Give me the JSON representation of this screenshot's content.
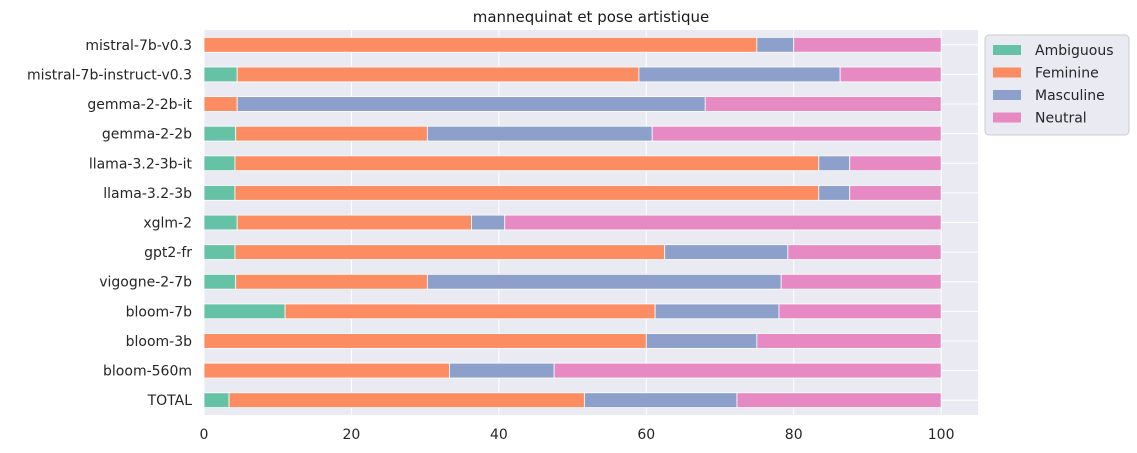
{
  "chart_data": {
    "type": "bar",
    "orientation": "horizontal",
    "stacked": true,
    "title": "mannequinat et pose artistique",
    "xlabel": "",
    "ylabel": "",
    "xlim": [
      0,
      105
    ],
    "xticks": [
      0,
      20,
      40,
      60,
      80,
      100
    ],
    "grid": true,
    "legend_position": "outside-top-right",
    "categories": [
      "mistral-7b-v0.3",
      "mistral-7b-instruct-v0.3",
      "gemma-2-2b-it",
      "gemma-2-2b",
      "llama-3.2-3b-it",
      "llama-3.2-3b",
      "xglm-2",
      "gpt2-fr",
      "vigogne-2-7b",
      "bloom-7b",
      "bloom-3b",
      "bloom-560m",
      "TOTAL"
    ],
    "series": [
      {
        "name": "Ambiguous",
        "color": "#66c2a5",
        "values": [
          0,
          4.5,
          0,
          4.3,
          4.2,
          4.2,
          4.5,
          4.2,
          4.3,
          11,
          0,
          0,
          3.4
        ]
      },
      {
        "name": "Feminine",
        "color": "#fc8d62",
        "values": [
          75,
          54.5,
          4.5,
          26,
          79.2,
          79.2,
          31.8,
          58.3,
          26,
          50.2,
          60,
          33.3,
          48.2
        ]
      },
      {
        "name": "Masculine",
        "color": "#8da0cb",
        "values": [
          5,
          27.3,
          63.5,
          30.5,
          4.2,
          4.2,
          4.5,
          16.7,
          48,
          16.8,
          15,
          14.2,
          20.7
        ]
      },
      {
        "name": "Neutral",
        "color": "#e78ac3",
        "values": [
          20,
          13.7,
          32,
          39.2,
          12.4,
          12.4,
          59.2,
          20.8,
          21.7,
          22,
          25,
          52.5,
          27.7
        ]
      }
    ]
  }
}
